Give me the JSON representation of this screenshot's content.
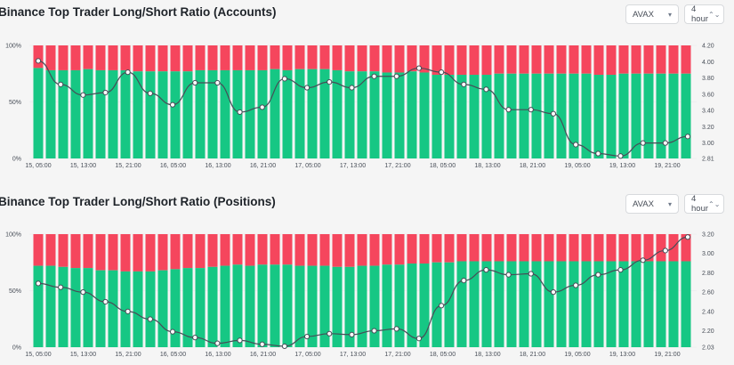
{
  "charts": [
    {
      "title": "Binance Top Trader Long/Short Ratio (Accounts)",
      "symbol_select": "AVAX",
      "period_select": "4 hour",
      "symbol_arrow": "▾",
      "period_arrow": "⌃⌄"
    },
    {
      "title": "Binance Top Trader Long/Short Ratio (Positions)",
      "symbol_select": "AVAX",
      "period_select": "4 hour",
      "symbol_arrow": "▾",
      "period_arrow": "⌃⌄"
    }
  ],
  "colors": {
    "long": "#16c784",
    "short": "#f5465d",
    "line": "#474d57"
  },
  "chart_data": [
    {
      "type": "bar",
      "title": "Binance Top Trader Long/Short Ratio (Accounts)",
      "x_tick_labels": [
        "15, 05:00",
        "15, 13:00",
        "15, 21:00",
        "16, 05:00",
        "16, 13:00",
        "16, 21:00",
        "17, 05:00",
        "17, 13:00",
        "17, 21:00",
        "18, 05:00",
        "18, 13:00",
        "18, 21:00",
        "19, 05:00",
        "19, 13:00",
        "19, 21:00"
      ],
      "y_left_ticks": [
        "0%",
        "50%",
        "100%"
      ],
      "y_right_ticks": [
        "2.81",
        "3.00",
        "3.20",
        "3.40",
        "3.60",
        "3.80",
        "4.00",
        "4.20"
      ],
      "y_right_range": [
        2.81,
        4.2
      ],
      "long_percent": [
        80,
        78,
        78,
        78,
        79,
        78,
        78,
        78,
        77,
        77,
        77,
        77,
        77,
        78,
        78,
        78,
        78,
        78,
        78,
        79,
        78,
        79,
        79,
        79,
        78,
        77,
        77,
        77,
        76,
        76,
        77,
        76,
        74,
        74,
        74,
        74,
        74,
        75,
        75,
        75,
        75,
        75,
        75,
        75,
        75,
        74,
        74,
        75,
        75,
        75,
        75,
        75,
        75
      ],
      "series": [
        {
          "name": "Long/Short Ratio",
          "values": [
            4.01,
            3.72,
            3.59,
            3.62,
            3.87,
            3.61,
            3.47,
            3.74,
            3.74,
            3.38,
            3.44,
            3.79,
            3.68,
            3.75,
            3.68,
            3.82,
            3.82,
            3.92,
            3.87,
            3.72,
            3.66,
            3.41,
            3.41,
            3.36,
            2.98,
            2.87,
            2.84,
            3.0,
            3.0,
            3.08
          ]
        }
      ]
    },
    {
      "type": "bar",
      "title": "Binance Top Trader Long/Short Ratio (Positions)",
      "x_tick_labels": [
        "15, 05:00",
        "15, 13:00",
        "15, 21:00",
        "16, 05:00",
        "16, 13:00",
        "16, 21:00",
        "17, 05:00",
        "17, 13:00",
        "17, 21:00",
        "18, 05:00",
        "18, 13:00",
        "18, 21:00",
        "19, 05:00",
        "19, 13:00",
        "19, 21:00"
      ],
      "y_left_ticks": [
        "0%",
        "50%",
        "100%"
      ],
      "y_right_ticks": [
        "2.03",
        "2.20",
        "2.40",
        "2.60",
        "2.80",
        "3.00",
        "3.20"
      ],
      "y_right_range": [
        2.03,
        3.2
      ],
      "long_percent": [
        72,
        72,
        71,
        70,
        70,
        68,
        68,
        67,
        67,
        67,
        68,
        69,
        70,
        70,
        71,
        72,
        73,
        72,
        73,
        73,
        73,
        72,
        72,
        72,
        71,
        71,
        72,
        72,
        73,
        73,
        74,
        74,
        75,
        75,
        76,
        76,
        76,
        76,
        76,
        76,
        76,
        76,
        76,
        76,
        76,
        76,
        76,
        76,
        76,
        76,
        76,
        76,
        76
      ],
      "series": [
        {
          "name": "Long/Short Ratio",
          "values": [
            2.69,
            2.65,
            2.6,
            2.5,
            2.4,
            2.32,
            2.19,
            2.13,
            2.07,
            2.1,
            2.06,
            2.04,
            2.14,
            2.17,
            2.16,
            2.2,
            2.22,
            2.12,
            2.46,
            2.72,
            2.83,
            2.78,
            2.79,
            2.6,
            2.67,
            2.78,
            2.83,
            2.93,
            3.03,
            3.17
          ]
        }
      ]
    }
  ]
}
